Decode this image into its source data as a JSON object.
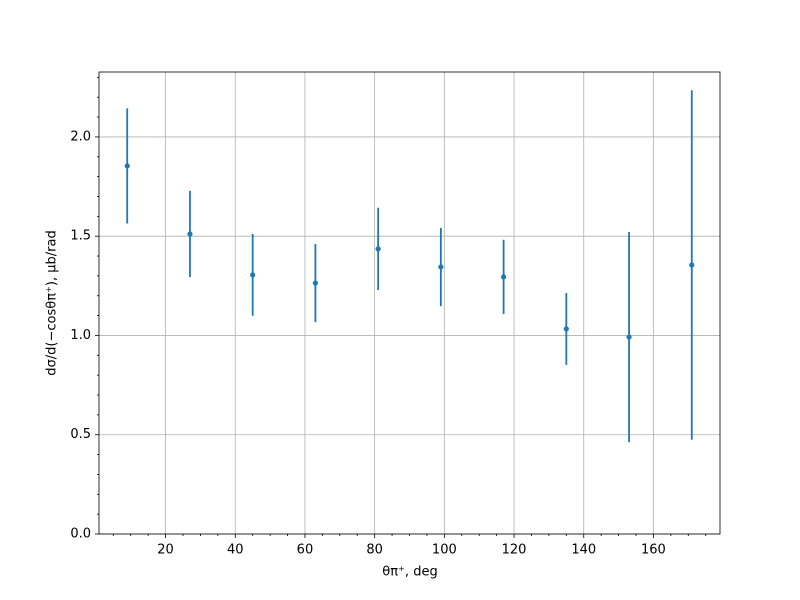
{
  "chart_data": {
    "type": "errorbar",
    "x_label": "θπ⁺, deg",
    "y_label": "dσ/d(−cosθπ⁺), μb/rad",
    "x": [
      9,
      27,
      45,
      63,
      81,
      99,
      117,
      135,
      153,
      171
    ],
    "values": [
      1.854,
      1.511,
      1.305,
      1.264,
      1.436,
      1.345,
      1.295,
      1.033,
      0.992,
      1.355
    ],
    "errors": [
      0.29,
      0.217,
      0.206,
      0.197,
      0.207,
      0.197,
      0.187,
      0.181,
      0.529,
      0.88
    ],
    "color": "#1f77b4",
    "xlim": [
      0.9,
      179.1
    ],
    "ylim": [
      0,
      2.327
    ],
    "xticks": [
      20,
      40,
      60,
      80,
      100,
      120,
      140,
      160
    ],
    "yticks": [
      {
        "value": 0,
        "label": "0.0"
      },
      0.5,
      {
        "value": 1,
        "label": "1.0"
      },
      1.5,
      {
        "value": 2,
        "label": "2.0"
      }
    ],
    "xminorticks": [
      5,
      10,
      15,
      25,
      30,
      35,
      45,
      50,
      55,
      65,
      70,
      75,
      85,
      90,
      95,
      105,
      110,
      115,
      125,
      130,
      135,
      145,
      150,
      155,
      165,
      170,
      175
    ],
    "yminorticks": [
      0.1,
      0.2,
      0.3,
      0.4,
      0.6,
      0.7,
      0.8,
      0.9,
      1.1,
      1.2,
      1.3,
      1.4,
      1.6,
      1.7,
      1.8,
      1.9,
      2.1,
      2.2,
      2.3
    ],
    "grid": true
  }
}
